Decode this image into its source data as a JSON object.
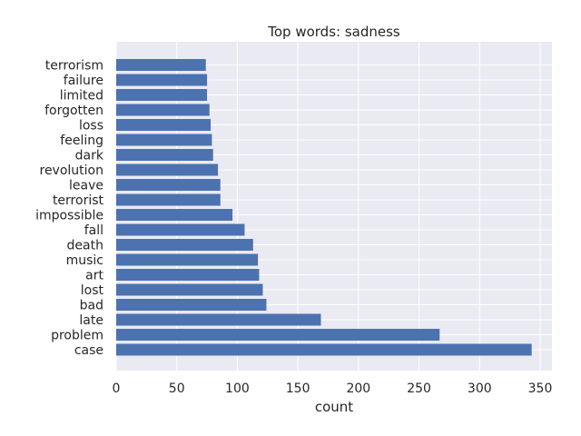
{
  "chart_data": {
    "type": "bar",
    "orientation": "horizontal",
    "title": "Top words: sadness",
    "xlabel": "count",
    "ylabel": "",
    "xlim": [
      0,
      360
    ],
    "xticks": [
      0,
      50,
      100,
      150,
      200,
      250,
      300,
      350
    ],
    "grid": true,
    "legend": "none",
    "bar_color": "#4c72b0",
    "background_color": "#eaeaf2",
    "categories": [
      "case",
      "problem",
      "late",
      "bad",
      "lost",
      "art",
      "music",
      "death",
      "fall",
      "impossible",
      "terrorist",
      "leave",
      "revolution",
      "dark",
      "feeling",
      "loss",
      "forgotten",
      "limited",
      "failure",
      "terrorism"
    ],
    "values": [
      343,
      267,
      169,
      124,
      121,
      118,
      117,
      113,
      106,
      96,
      86,
      86,
      84,
      80,
      79,
      78,
      77,
      75,
      75,
      74
    ]
  }
}
